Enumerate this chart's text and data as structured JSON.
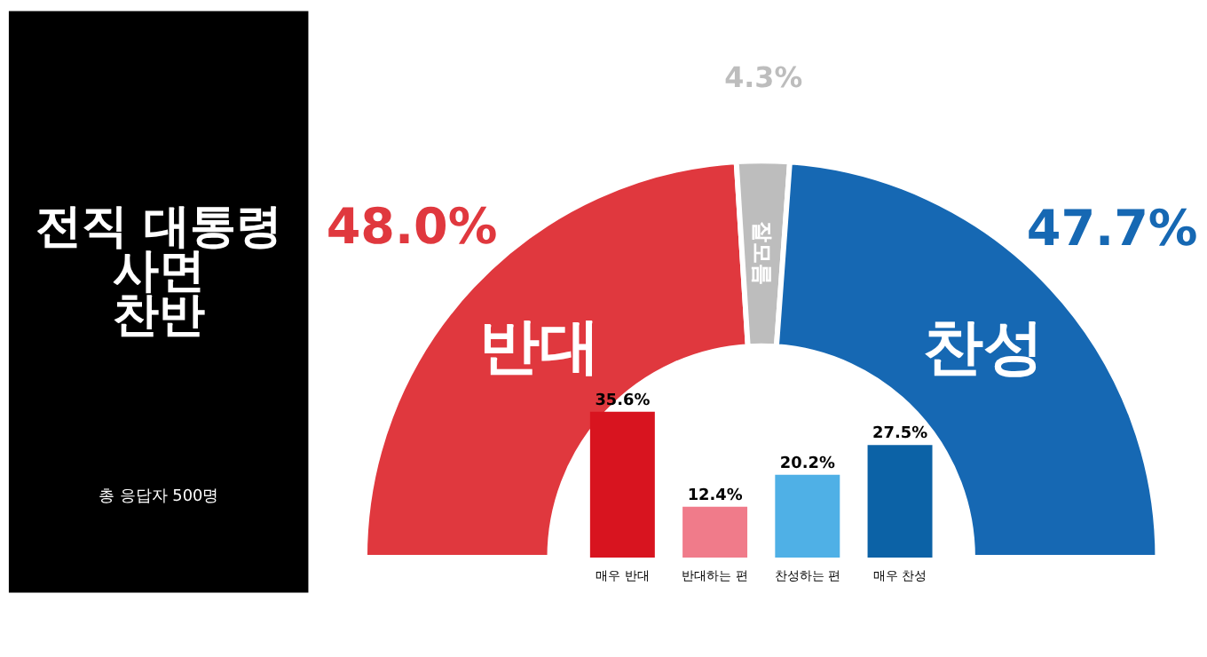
{
  "chart_data": [
    {
      "type": "donut",
      "title": "전직 대통령\n사면\n찬반",
      "annotations": [
        "총 응답자 500명"
      ],
      "categories": [
        "반대",
        "잘모름",
        "찬성"
      ],
      "values": [
        48.0,
        4.3,
        47.7
      ],
      "colors": [
        "#e0383e",
        "#bdbdbd",
        "#1668b3"
      ],
      "value_labels": [
        "48.0%",
        "4.3%",
        "47.7%"
      ],
      "legend": false
    },
    {
      "type": "bar",
      "categories": [
        "매우 반대",
        "반대하는 편",
        "찬성하는 편",
        "매우 찬성"
      ],
      "values": [
        35.6,
        12.4,
        20.2,
        27.5
      ],
      "colors": [
        "#d8141f",
        "#f07b8a",
        "#4fb0e6",
        "#0c62a6"
      ],
      "value_labels": [
        "35.6%",
        "12.4%",
        "20.2%",
        "27.5%"
      ]
    }
  ]
}
